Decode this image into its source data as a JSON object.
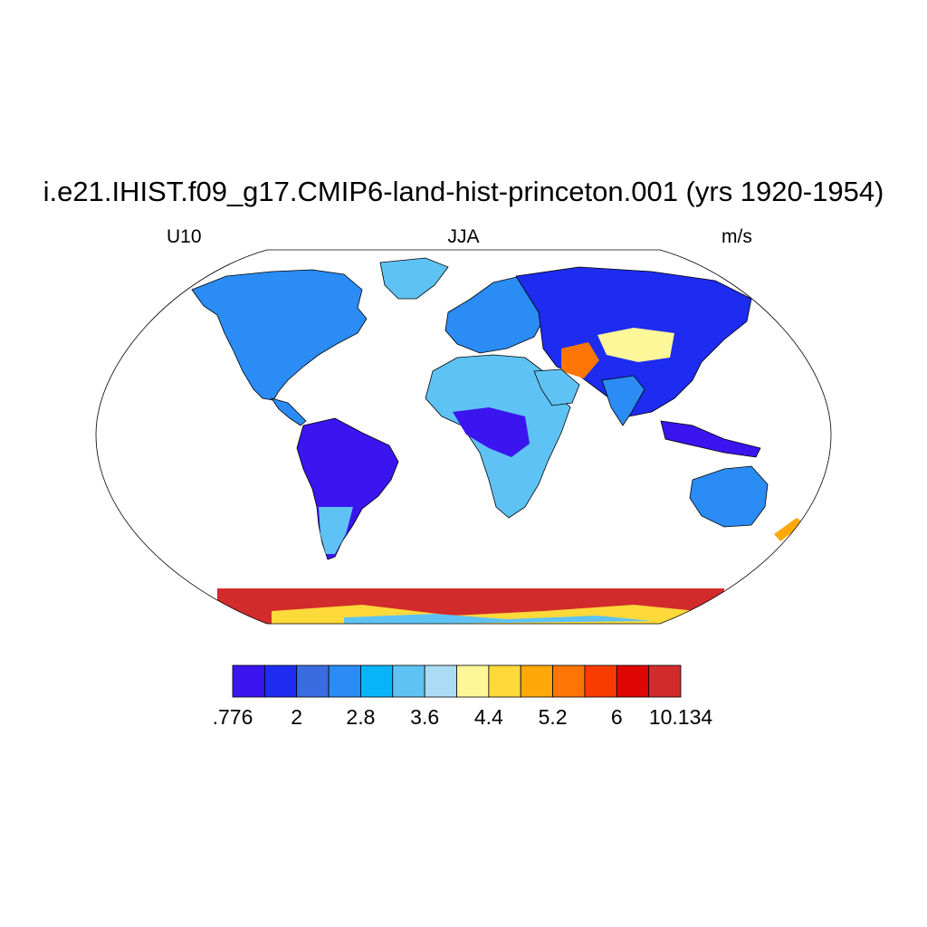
{
  "title": "i.e21.IHIST.f09_g17.CMIP6-land-hist-princeton.001 (yrs 1920-1954)",
  "variable": "U10",
  "season": "JJA",
  "units": "m/s",
  "projection": "Robinson",
  "colorbar": {
    "colors": [
      "#3b15f0",
      "#1d2cf0",
      "#3a6ce0",
      "#2a8cf4",
      "#08b4f8",
      "#5ec3f4",
      "#aadcf4",
      "#fef79a",
      "#fed93a",
      "#fea80a",
      "#fd7506",
      "#f93b00",
      "#de0704",
      "#d12b2b"
    ],
    "labels": [
      ".776",
      "2",
      "2.8",
      "3.6",
      "4.4",
      "5.2",
      "6",
      "10.134"
    ]
  },
  "map_style": {
    "land_base": "#2a8cf4",
    "ocean": "#ffffff",
    "coastline": "#000000"
  }
}
